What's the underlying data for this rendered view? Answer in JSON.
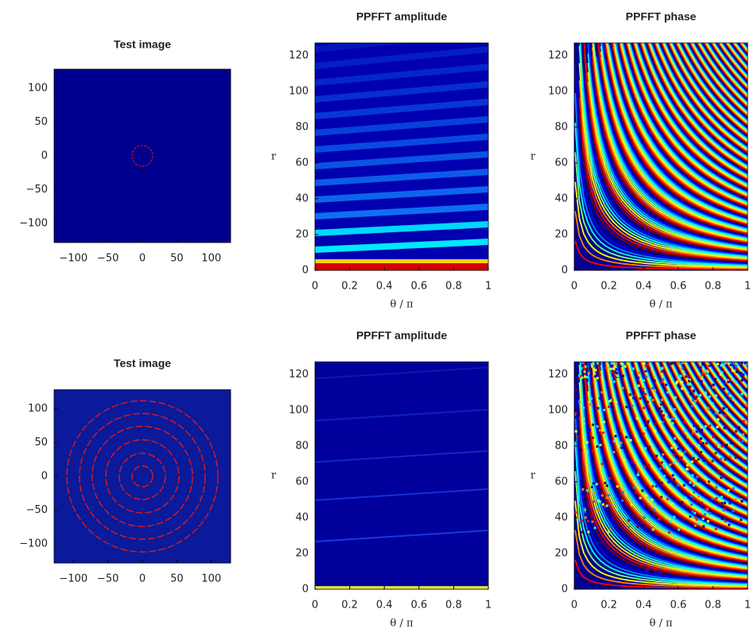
{
  "chart_data": [
    {
      "type": "image",
      "title": "Test image",
      "xlim": [
        -128,
        128
      ],
      "ylim": [
        -128,
        128
      ],
      "xticks": [
        {
          "value": -100,
          "label": "−100"
        },
        {
          "value": -50,
          "label": "−50"
        },
        0,
        50,
        100
      ],
      "yticks": [
        {
          "value": -100,
          "label": "−100"
        },
        {
          "value": -50,
          "label": "−50"
        },
        0,
        50,
        100
      ]
    },
    {
      "type": "image",
      "title": "PPFFT amplitude",
      "xlabel": "θ / π",
      "ylabel": "r",
      "xlim": [
        0,
        1
      ],
      "ylim": [
        0,
        127
      ],
      "xticks": [
        0,
        0.2,
        0.4,
        0.6,
        0.8,
        1
      ],
      "yticks": [
        0,
        20,
        40,
        60,
        80,
        100,
        120
      ]
    },
    {
      "type": "image",
      "title": "PPFFT phase",
      "xlabel": "θ / π",
      "ylabel": "r",
      "xlim": [
        0,
        1
      ],
      "ylim": [
        0,
        127
      ],
      "xticks": [
        0,
        0.2,
        0.4,
        0.6,
        0.8,
        1
      ],
      "yticks": [
        0,
        20,
        40,
        60,
        80,
        100,
        120
      ]
    },
    {
      "type": "image",
      "title": "Test image",
      "xlim": [
        -128,
        128
      ],
      "ylim": [
        -128,
        128
      ],
      "xticks": [
        {
          "value": -100,
          "label": "−100"
        },
        {
          "value": -50,
          "label": "−50"
        },
        0,
        50,
        100
      ],
      "yticks": [
        {
          "value": -100,
          "label": "−100"
        },
        {
          "value": -50,
          "label": "−50"
        },
        0,
        50,
        100
      ]
    },
    {
      "type": "image",
      "title": "PPFFT amplitude",
      "xlabel": "θ / π",
      "ylabel": "r",
      "xlim": [
        0,
        1
      ],
      "ylim": [
        0,
        127
      ],
      "xticks": [
        0,
        0.2,
        0.4,
        0.6,
        0.8,
        1
      ],
      "yticks": [
        0,
        20,
        40,
        60,
        80,
        100,
        120
      ]
    },
    {
      "type": "image",
      "title": "PPFFT phase",
      "xlabel": "θ / π",
      "ylabel": "r",
      "xlim": [
        0,
        1
      ],
      "ylim": [
        0,
        127
      ],
      "xticks": [
        0,
        0.2,
        0.4,
        0.6,
        0.8,
        1
      ],
      "yticks": [
        0,
        20,
        40,
        60,
        80,
        100,
        120
      ]
    }
  ]
}
